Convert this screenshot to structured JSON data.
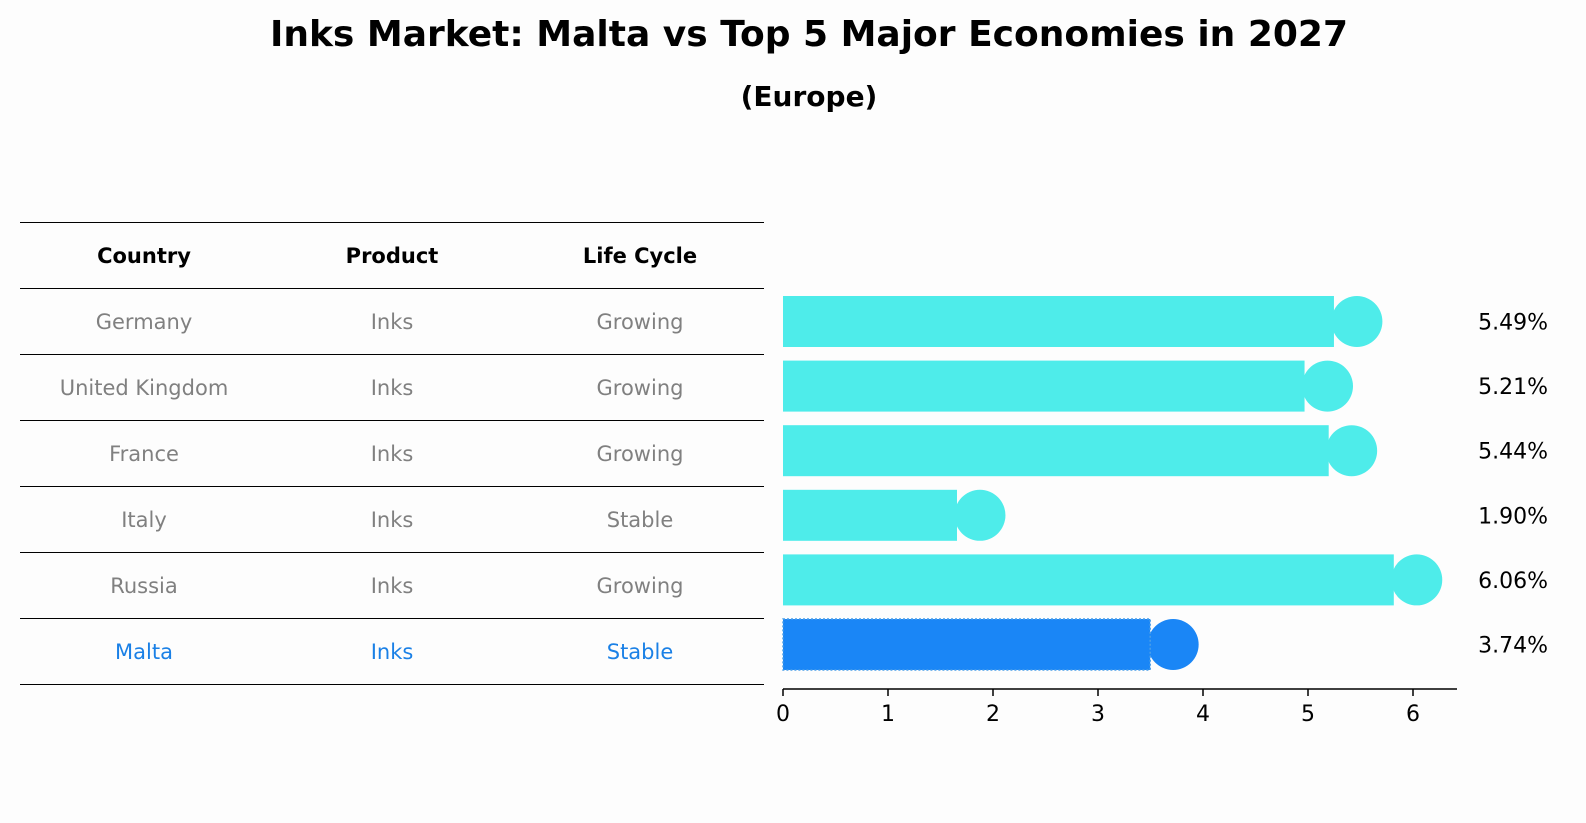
{
  "title": "Inks Market: Malta vs Top 5 Major Economies in 2027",
  "subtitle": "(Europe)",
  "table": {
    "headers": [
      "Country",
      "Product",
      "Life Cycle"
    ],
    "rows": [
      {
        "country": "Germany",
        "product": "Inks",
        "life_cycle": "Growing"
      },
      {
        "country": "United Kingdom",
        "product": "Inks",
        "life_cycle": "Growing"
      },
      {
        "country": "France",
        "product": "Inks",
        "life_cycle": "Growing"
      },
      {
        "country": "Italy",
        "product": "Inks",
        "life_cycle": "Stable"
      },
      {
        "country": "Russia",
        "product": "Inks",
        "life_cycle": "Growing"
      },
      {
        "country": "Malta",
        "product": "Inks",
        "life_cycle": "Stable"
      }
    ]
  },
  "chart_data": {
    "type": "bar",
    "orientation": "horizontal",
    "categories": [
      "Germany",
      "United Kingdom",
      "France",
      "Italy",
      "Russia",
      "Malta"
    ],
    "values": [
      5.49,
      5.21,
      5.44,
      1.9,
      6.06,
      3.74
    ],
    "value_labels": [
      "5.49%",
      "5.21%",
      "5.44%",
      "1.90%",
      "6.06%",
      "3.74%"
    ],
    "highlight": "Malta",
    "xlim": [
      0,
      6.4
    ],
    "xticks": [
      0,
      1,
      2,
      3,
      4,
      5,
      6
    ],
    "colors": {
      "default": "#4eecea",
      "highlight": "#1a86f6"
    }
  }
}
